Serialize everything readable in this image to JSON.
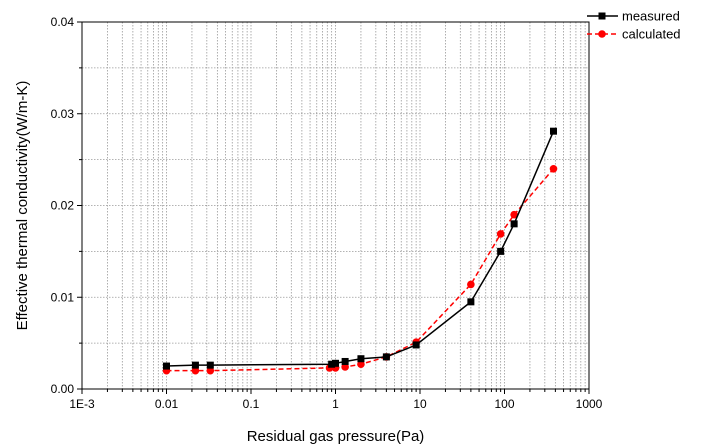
{
  "chart_data": {
    "type": "line",
    "xscale": "log",
    "xlim": [
      0.001,
      1000
    ],
    "ylim": [
      0,
      0.04
    ],
    "grid": true,
    "legend_position": "top-right",
    "xlabel": "Residual gas pressure(Pa)",
    "ylabel": "Effective thermal conductivity(W/m-K)",
    "x_ticks": [
      0.001,
      0.01,
      0.1,
      1,
      10,
      100,
      1000
    ],
    "x_tick_labels": [
      "1E-3",
      "0.01",
      "0.1",
      "1",
      "10",
      "100",
      "1000"
    ],
    "y_ticks": [
      0,
      0.01,
      0.02,
      0.03,
      0.04
    ],
    "y_tick_labels": [
      "0.00",
      "0.01",
      "0.02",
      "0.03",
      "0.04"
    ],
    "series": [
      {
        "name": "measured",
        "color": "#000000",
        "marker": "square",
        "line_style": "solid",
        "points": [
          [
            0.01,
            0.0025
          ],
          [
            0.022,
            0.0026
          ],
          [
            0.033,
            0.0026
          ],
          [
            0.9,
            0.0027
          ],
          [
            1.0,
            0.0028
          ],
          [
            1.3,
            0.003
          ],
          [
            2.0,
            0.0033
          ],
          [
            4.0,
            0.0035
          ],
          [
            9.0,
            0.0048
          ],
          [
            40,
            0.0095
          ],
          [
            90,
            0.015
          ],
          [
            130,
            0.018
          ],
          [
            380,
            0.0281
          ]
        ]
      },
      {
        "name": "calculated",
        "color": "#ff0000",
        "marker": "circle",
        "line_style": "dashed",
        "points": [
          [
            0.01,
            0.002
          ],
          [
            0.022,
            0.002
          ],
          [
            0.033,
            0.002
          ],
          [
            0.85,
            0.0023
          ],
          [
            1.0,
            0.0023
          ],
          [
            1.3,
            0.0024
          ],
          [
            2.0,
            0.0027
          ],
          [
            4.0,
            0.0035
          ],
          [
            9.0,
            0.0051
          ],
          [
            40,
            0.0114
          ],
          [
            90,
            0.0169
          ],
          [
            130,
            0.019
          ],
          [
            380,
            0.024
          ]
        ]
      }
    ]
  }
}
